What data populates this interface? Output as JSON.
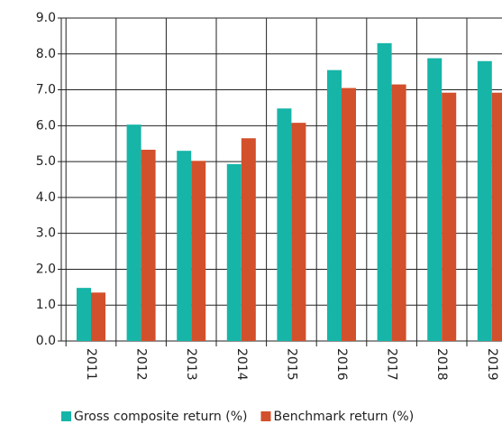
{
  "chart_data": {
    "type": "bar",
    "categories": [
      "2011",
      "2012",
      "2013",
      "2014",
      "2015",
      "2016",
      "2017",
      "2018",
      "2019"
    ],
    "series": [
      {
        "name": "Gross composite return (%)",
        "color": "#16b5a8",
        "values": [
          1.48,
          6.03,
          5.3,
          4.93,
          6.48,
          7.55,
          8.3,
          7.88,
          7.8
        ]
      },
      {
        "name": "Benchmark return (%)",
        "color": "#d2502b",
        "values": [
          1.35,
          5.33,
          5.02,
          5.65,
          6.08,
          7.05,
          7.15,
          6.92,
          6.92
        ]
      }
    ],
    "ylim": [
      0,
      9
    ],
    "yticks": [
      {
        "value": 0,
        "label": "0.0"
      },
      {
        "value": 1,
        "label": "1.0"
      },
      {
        "value": 2,
        "label": "2.0"
      },
      {
        "value": 3,
        "label": "3.0"
      },
      {
        "value": 4,
        "label": "4.0"
      },
      {
        "value": 5,
        "label": "5.0"
      },
      {
        "value": 6,
        "label": "6.0"
      },
      {
        "value": 7,
        "label": "7.0"
      },
      {
        "value": 8,
        "label": "8.0"
      },
      {
        "value": 9,
        "label": "9.0"
      }
    ],
    "grid": true
  }
}
